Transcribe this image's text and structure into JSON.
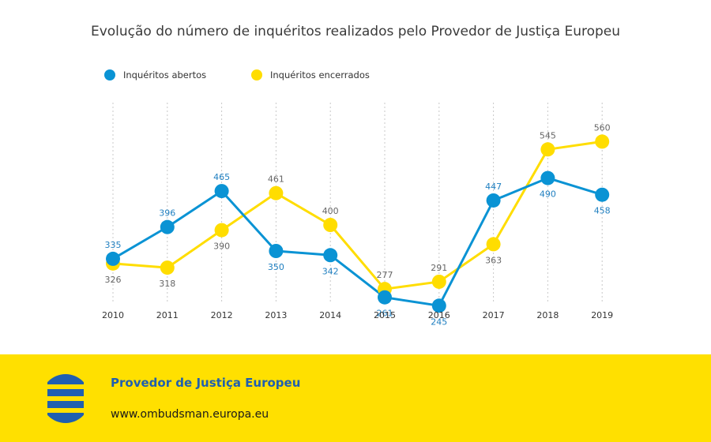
{
  "chart_data": {
    "type": "line",
    "title": "Evolução do número de inquéritos realizados pelo Provedor de Justiça Europeu",
    "categories": [
      "2010",
      "2011",
      "2012",
      "2013",
      "2014",
      "2015",
      "2016",
      "2017",
      "2018",
      "2019"
    ],
    "series": [
      {
        "name": "Inquéritos abertos",
        "color": "#0a93d4",
        "values": [
          335,
          396,
          465,
          350,
          342,
          261,
          245,
          447,
          490,
          458
        ]
      },
      {
        "name": "Inquéritos encerrados",
        "color": "#ffdd00",
        "values": [
          326,
          318,
          390,
          461,
          400,
          277,
          291,
          363,
          545,
          560
        ]
      }
    ],
    "ylim": [
      150,
      650
    ],
    "grid": "vertical-dotted",
    "legend": "top-left",
    "label_colors": {
      "abertos": "#1f7fc0",
      "encerrados": "#666666"
    }
  },
  "footer": {
    "name": "Provedor de Justiça Europeu",
    "url": "www.ombudsman.europa.eu",
    "background": "#ffe000",
    "logo_icon": "european-ombudsman-logo-icon"
  }
}
